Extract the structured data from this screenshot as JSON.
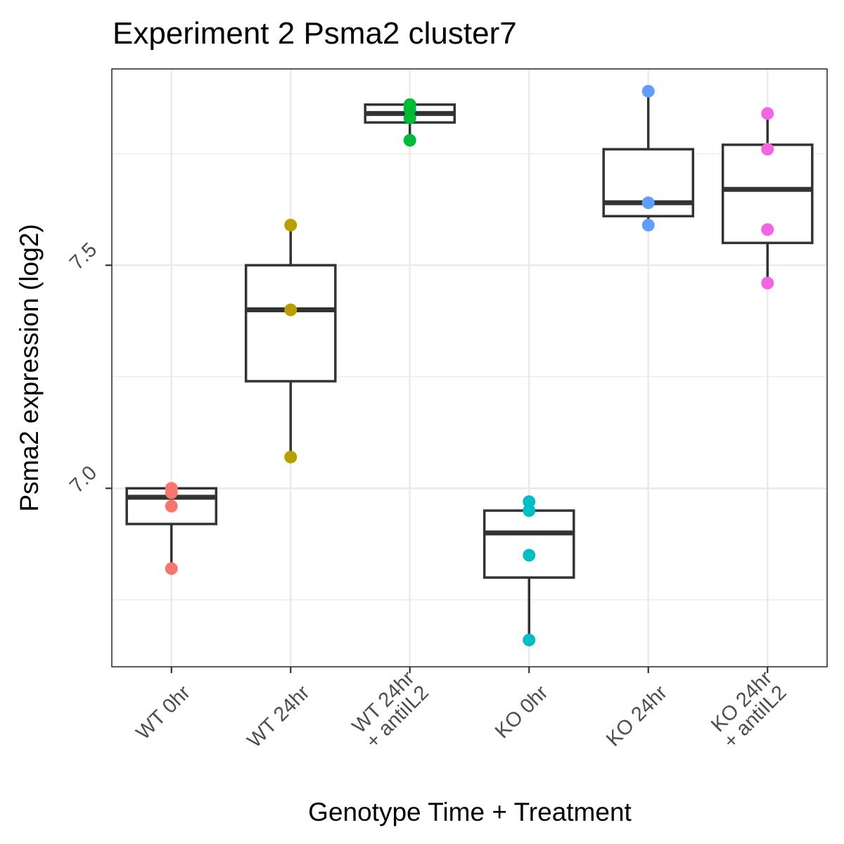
{
  "chart_data": {
    "type": "box",
    "title": "Experiment 2 Psma2 cluster7",
    "xlabel": "Genotype Time + Treatment",
    "ylabel": "Psma2 expression (log2)",
    "ylim": [
      6.6,
      7.94
    ],
    "y_major_ticks": [
      7.0,
      7.5
    ],
    "y_minor_ticks": [
      6.75,
      7.25,
      7.75
    ],
    "grid": true,
    "legend": "none",
    "categories": [
      {
        "label": [
          "WT 0hr"
        ],
        "color": "#F8766D",
        "box": {
          "lower_whisker": 6.82,
          "q1": 6.92,
          "median": 6.98,
          "q3": 7.0,
          "upper_whisker": 7.0
        },
        "points": [
          7.0,
          6.99,
          6.96,
          6.82
        ]
      },
      {
        "label": [
          "WT 24hr"
        ],
        "color": "#B79F00",
        "box": {
          "lower_whisker": 7.07,
          "q1": 7.24,
          "median": 7.4,
          "q3": 7.5,
          "upper_whisker": 7.59
        },
        "points": [
          7.59,
          7.4,
          7.07
        ]
      },
      {
        "label": [
          "WT 24hr",
          "+ antiIL2"
        ],
        "color": "#00BA38",
        "box": {
          "lower_whisker": 7.78,
          "q1": 7.82,
          "median": 7.84,
          "q3": 7.86,
          "upper_whisker": 7.86
        },
        "points": [
          7.86,
          7.85,
          7.83,
          7.78
        ]
      },
      {
        "label": [
          "KO 0hr"
        ],
        "color": "#00BFC4",
        "box": {
          "lower_whisker": 6.66,
          "q1": 6.8,
          "median": 6.9,
          "q3": 6.95,
          "upper_whisker": 6.97
        },
        "points": [
          6.97,
          6.95,
          6.85,
          6.66
        ]
      },
      {
        "label": [
          "KO 24hr"
        ],
        "color": "#619CFF",
        "box": {
          "lower_whisker": 7.59,
          "q1": 7.61,
          "median": 7.64,
          "q3": 7.76,
          "upper_whisker": 7.89
        },
        "points": [
          7.89,
          7.64,
          7.59
        ]
      },
      {
        "label": [
          "KO 24hr",
          "+ antiIL2"
        ],
        "color": "#F564E3",
        "box": {
          "lower_whisker": 7.46,
          "q1": 7.55,
          "median": 7.67,
          "q3": 7.77,
          "upper_whisker": 7.84
        },
        "points": [
          7.84,
          7.76,
          7.58,
          7.46
        ]
      }
    ]
  }
}
